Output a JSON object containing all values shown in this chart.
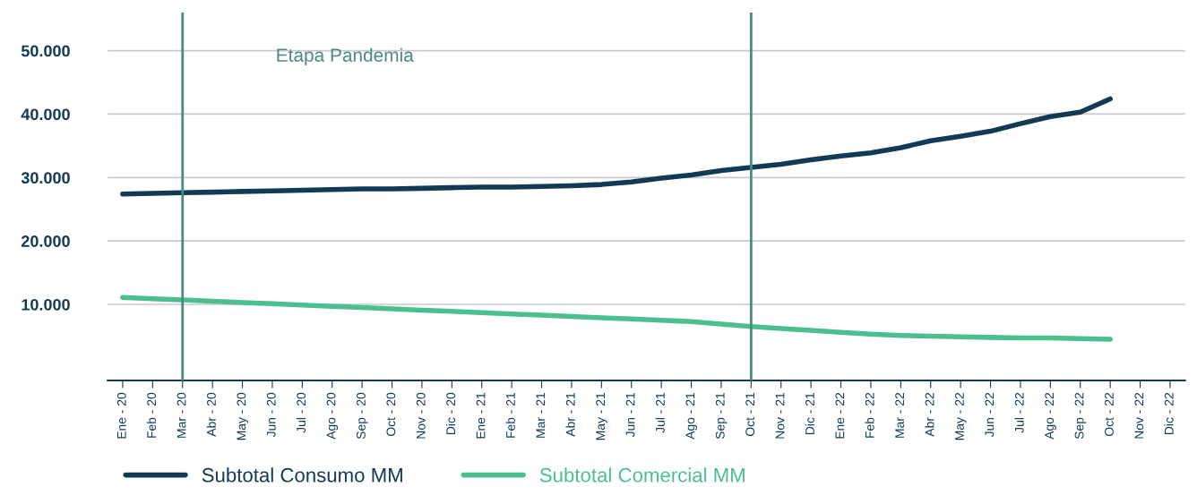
{
  "chart_data": {
    "type": "line",
    "categories": [
      "Ene - 20",
      "Feb - 20",
      "Mar - 20",
      "Abr - 20",
      "May - 20",
      "Jun - 20",
      "Jul - 20",
      "Ago - 20",
      "Sep - 20",
      "Oct - 20",
      "Nov - 20",
      "Dic - 20",
      "Ene - 21",
      "Feb - 21",
      "Mar - 21",
      "Abr - 21",
      "May - 21",
      "Jun - 21",
      "Jul - 21",
      "Ago - 21",
      "Sep - 21",
      "Oct - 21",
      "Nov - 21",
      "Dic - 21",
      "Ene - 22",
      "Feb - 22",
      "Mar - 22",
      "Abr - 22",
      "May - 22",
      "Jun - 22",
      "Jul - 22",
      "Ago - 22",
      "Sep - 22",
      "Oct - 22",
      "Nov - 22",
      "Dic - 22"
    ],
    "series": [
      {
        "name": "Subtotal Consumo MM",
        "color": "#123a55",
        "values": [
          27400,
          27500,
          27600,
          27700,
          27800,
          27900,
          28000,
          28100,
          28200,
          28200,
          28300,
          28400,
          28500,
          28500,
          28600,
          28700,
          28900,
          29300,
          29900,
          30400,
          31100,
          31600,
          32100,
          32800,
          33400,
          33900,
          34700,
          35800,
          36500,
          37300,
          38500,
          39600,
          40300,
          42400,
          null,
          null
        ]
      },
      {
        "name": "Subtotal Comercial MM",
        "color": "#4bbf8f",
        "values": [
          11100,
          10900,
          10700,
          10500,
          10300,
          10100,
          9900,
          9700,
          9500,
          9300,
          9100,
          8900,
          8700,
          8500,
          8300,
          8100,
          7900,
          7700,
          7500,
          7300,
          6900,
          6500,
          6200,
          5900,
          5600,
          5300,
          5100,
          5000,
          4900,
          4800,
          4700,
          4700,
          4600,
          4500,
          null,
          null
        ]
      }
    ],
    "ylim": [
      -2000,
      56000
    ],
    "yticks": [
      {
        "value": 10000,
        "label": "10.000"
      },
      {
        "value": 20000,
        "label": "20.000"
      },
      {
        "value": 30000,
        "label": "30.000"
      },
      {
        "value": 40000,
        "label": "40.000"
      },
      {
        "value": 50000,
        "label": "50.000"
      }
    ],
    "ref_lines": [
      {
        "axis": "x",
        "value": "Mar - 20",
        "color": "#4a8a80"
      },
      {
        "axis": "x",
        "value": "Oct - 21",
        "color": "#4a8a80"
      }
    ],
    "annotations": [
      "Etapa Pandemia"
    ],
    "grid": "y",
    "legend": "bottom left",
    "line_style": "solid",
    "marker": "none"
  }
}
